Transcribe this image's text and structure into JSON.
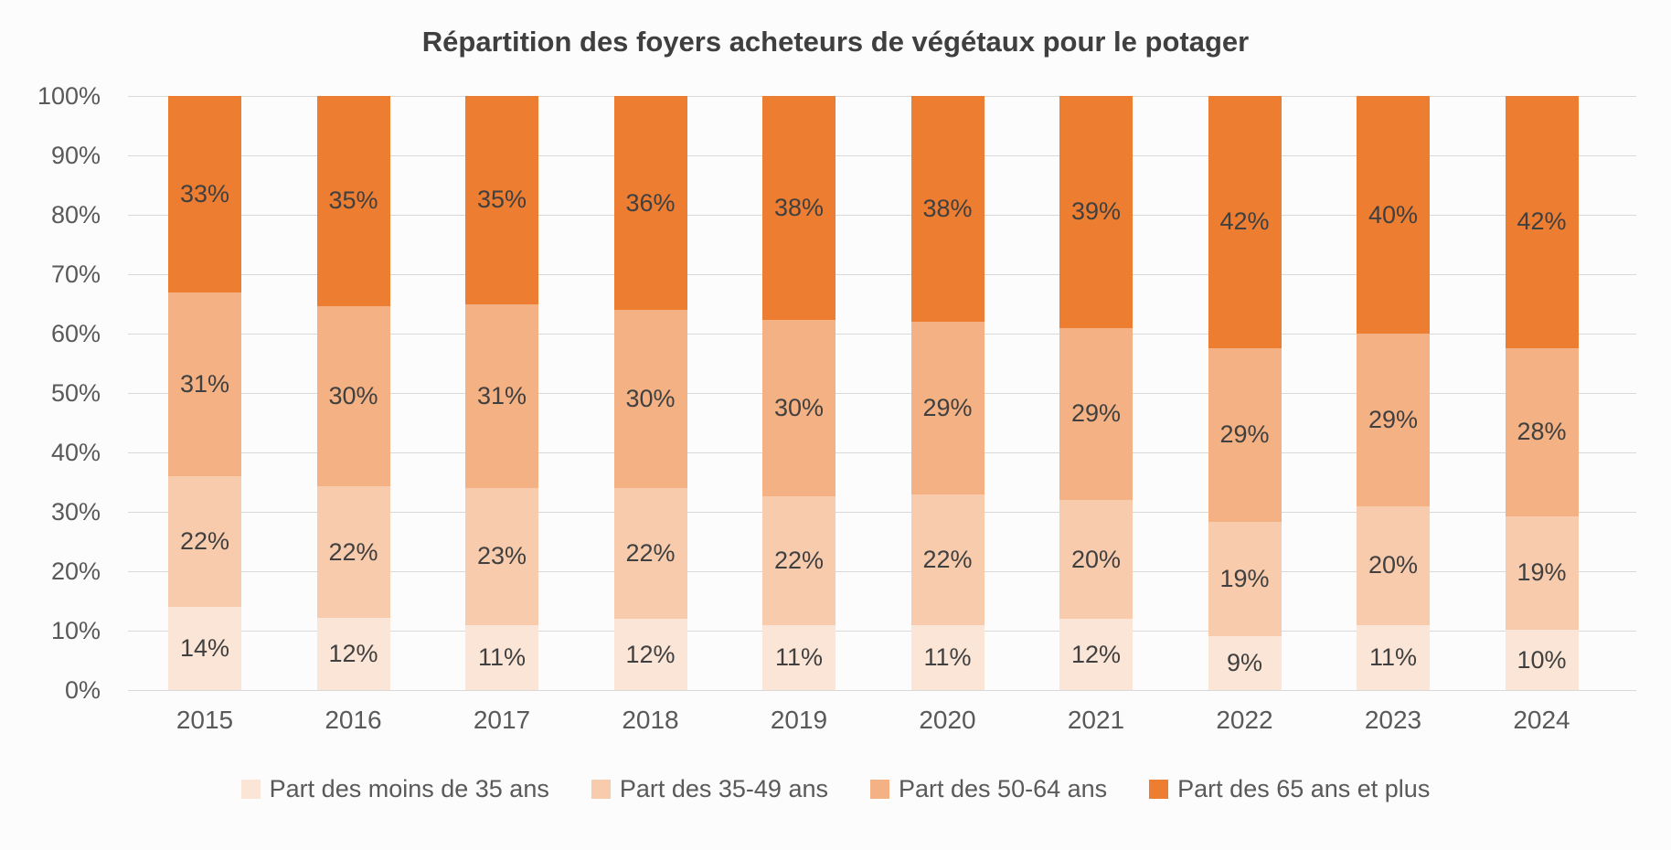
{
  "chart_data": {
    "type": "bar",
    "variant": "stacked-100",
    "title": "Répartition des foyers acheteurs de végétaux pour le potager",
    "categories": [
      "2015",
      "2016",
      "2017",
      "2018",
      "2019",
      "2020",
      "2021",
      "2022",
      "2023",
      "2024"
    ],
    "series": [
      {
        "name": "Part des moins de 35 ans",
        "color": "#FBE5D6",
        "values": [
          14,
          12,
          11,
          12,
          11,
          11,
          12,
          9,
          11,
          10
        ]
      },
      {
        "name": "Part des 35-49 ans",
        "color": "#F8CBAD",
        "values": [
          22,
          22,
          23,
          22,
          22,
          22,
          20,
          19,
          20,
          19
        ]
      },
      {
        "name": "Part des 50-64 ans",
        "color": "#F4B183",
        "values": [
          31,
          30,
          31,
          30,
          30,
          29,
          29,
          29,
          29,
          28
        ]
      },
      {
        "name": "Part des 65 ans et plus",
        "color": "#ED7D31",
        "values": [
          33,
          35,
          35,
          36,
          38,
          38,
          39,
          42,
          40,
          42
        ]
      }
    ],
    "y_axis": {
      "min": 0,
      "max": 100,
      "tick_step": 10,
      "tick_labels": [
        "0%",
        "10%",
        "20%",
        "30%",
        "40%",
        "50%",
        "60%",
        "70%",
        "80%",
        "90%",
        "100%"
      ]
    },
    "grid": true,
    "legend_position": "bottom",
    "data_labels": true,
    "data_label_suffix": "%"
  },
  "palette": {
    "background": "#FCFCFC",
    "title_text": "#3F3F3F",
    "axis_text": "#595959",
    "data_label_text": "#404040",
    "gridline": "#D9D9D9"
  }
}
